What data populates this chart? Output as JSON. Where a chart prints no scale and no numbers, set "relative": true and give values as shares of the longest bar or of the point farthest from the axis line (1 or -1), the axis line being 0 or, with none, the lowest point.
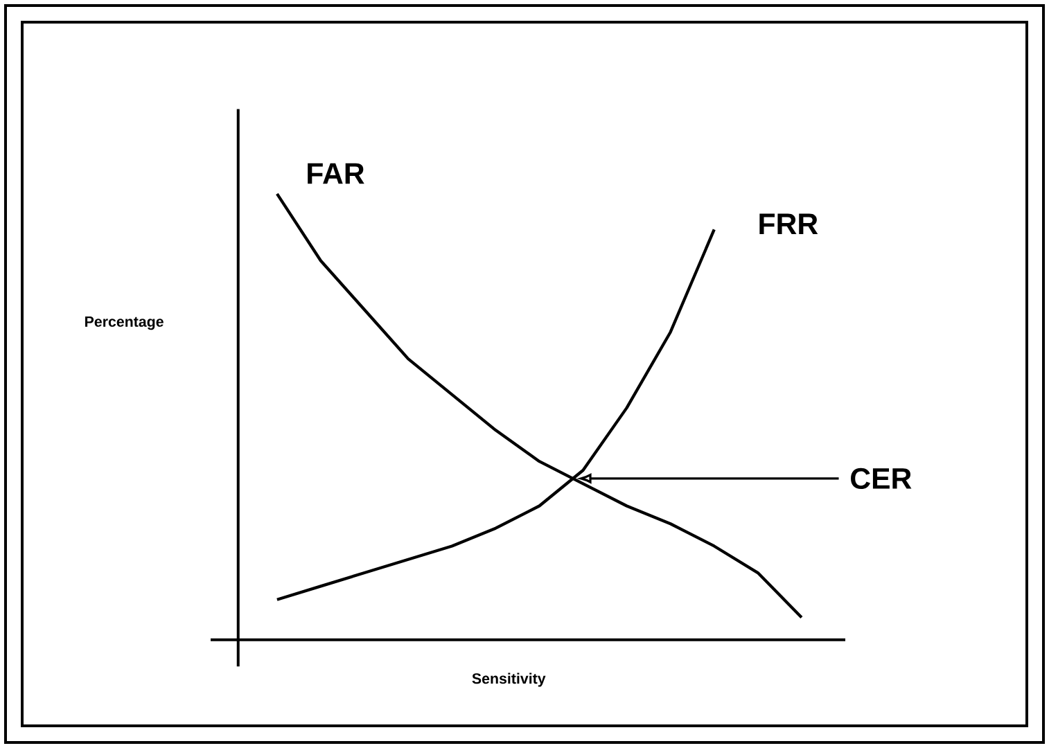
{
  "chart_data": {
    "type": "line",
    "relative": true,
    "xlabel": "Sensitivity",
    "ylabel": "Percentage",
    "categories": [
      null,
      null,
      null,
      null,
      null,
      null,
      null,
      null,
      null,
      null,
      null,
      null,
      null
    ],
    "series": [
      {
        "name": "FAR",
        "color": "#000000",
        "values": [
          1.0,
          0.85,
          0.74,
          0.63,
          0.55,
          0.47,
          0.4,
          0.35,
          0.3,
          0.26,
          0.21,
          0.15,
          0.05
        ]
      },
      {
        "name": "FRR",
        "color": "#000000",
        "values": [
          0.09,
          0.12,
          0.15,
          0.18,
          0.21,
          0.25,
          0.3,
          0.38,
          0.52,
          0.69,
          0.92,
          null,
          null
        ]
      }
    ],
    "annotations": [
      "CER"
    ],
    "marker": "none",
    "line_style": "solid",
    "legend": false
  }
}
